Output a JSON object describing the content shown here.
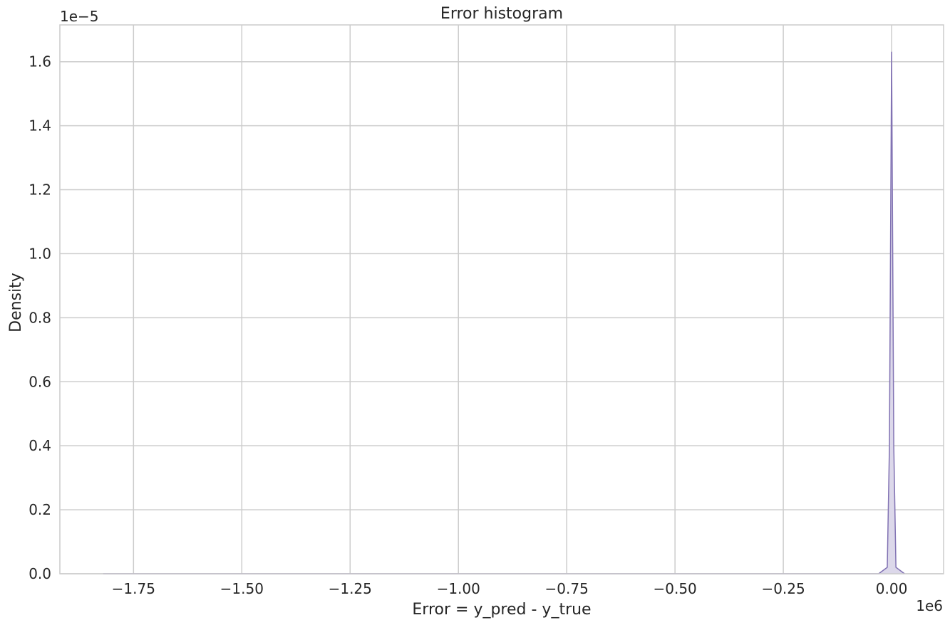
{
  "chart_data": {
    "type": "area",
    "title": "Error histogram",
    "xlabel": "Error = y_pred - y_true",
    "ylabel": "Density",
    "x_offset_label": "1e6",
    "y_offset_label": "1e−5",
    "x_scale": 1000000,
    "y_scale": 1e-05,
    "xlim": [
      -1.92,
      0.12
    ],
    "ylim": [
      0.0,
      1.715
    ],
    "xticks": [
      -1.75,
      -1.5,
      -1.25,
      -1.0,
      -0.75,
      -0.5,
      -0.25,
      0.0
    ],
    "xtick_labels": [
      "−1.75",
      "−1.50",
      "−1.25",
      "−1.00",
      "−0.75",
      "−0.50",
      "−0.25",
      "0.00"
    ],
    "yticks": [
      0.0,
      0.2,
      0.4,
      0.6,
      0.8,
      1.0,
      1.2,
      1.4,
      1.6
    ],
    "ytick_labels": [
      "0.0",
      "0.2",
      "0.4",
      "0.6",
      "0.8",
      "1.0",
      "1.2",
      "1.4",
      "1.6"
    ],
    "grid": true,
    "series": [
      {
        "color": "#8172b3",
        "fill": "#dcd8ea",
        "x": [
          -1.82,
          -1.8,
          -0.45,
          -0.03,
          -0.02,
          -0.01,
          -0.005,
          0.0,
          0.005,
          0.01,
          0.02,
          0.03
        ],
        "y": [
          0.0,
          0.0,
          0.0,
          0.0,
          0.01,
          0.02,
          0.4,
          1.63,
          0.4,
          0.02,
          0.01,
          0.0
        ]
      }
    ]
  }
}
